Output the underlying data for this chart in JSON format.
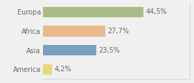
{
  "categories": [
    "Europa",
    "Africa",
    "Asia",
    "America"
  ],
  "values": [
    44.5,
    27.7,
    23.5,
    4.2
  ],
  "labels": [
    "44,5%",
    "27,7%",
    "23,5%",
    "4,2%"
  ],
  "bar_colors": [
    "#a8bc8a",
    "#e8b98a",
    "#7a9fc0",
    "#e8d87a"
  ],
  "background_color": "#f0f0f0",
  "xlim": [
    0,
    65
  ],
  "label_fontsize": 7,
  "tick_fontsize": 7,
  "bar_height": 0.55
}
